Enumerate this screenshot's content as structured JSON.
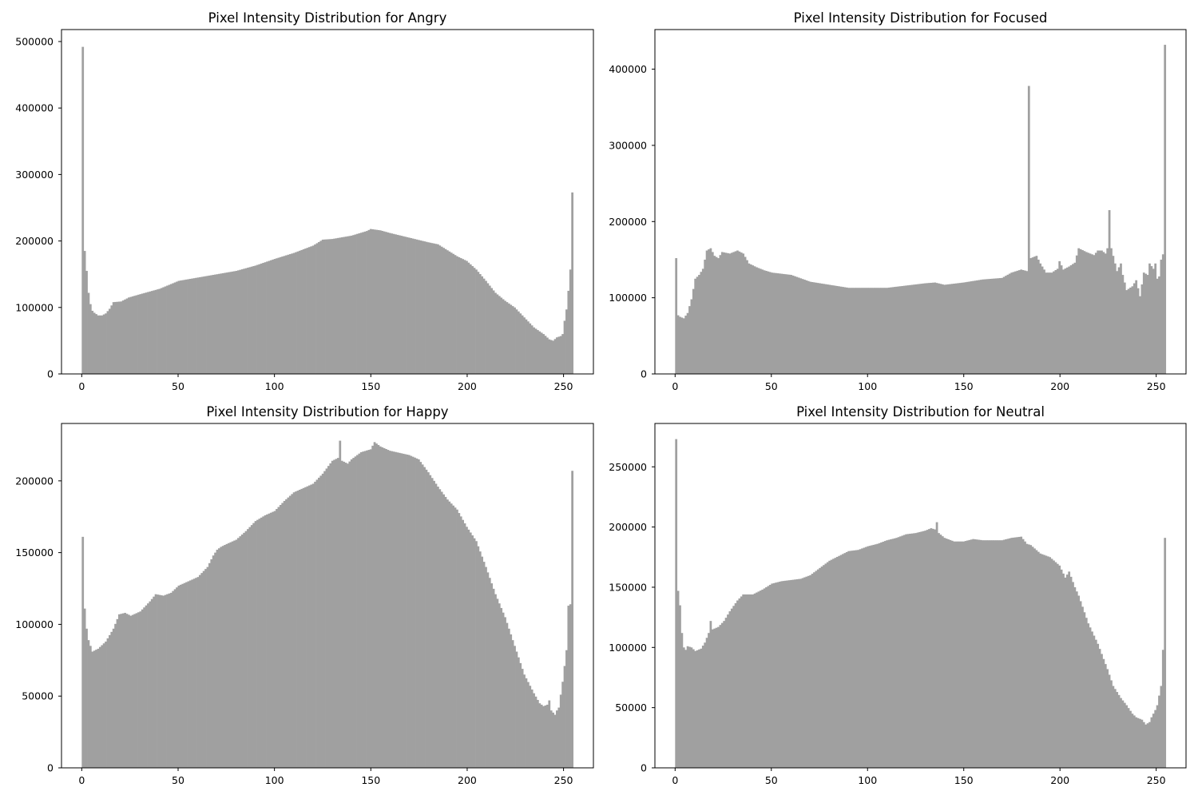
{
  "colors": {
    "bar": "#a0a0a0",
    "background": "#ffffff",
    "axis": "#000000"
  },
  "chart_data": [
    {
      "type": "bar",
      "title": "Pixel Intensity Distribution for Angry",
      "xlabel": "",
      "ylabel": "",
      "xlim": [
        -10.5,
        265.5
      ],
      "ylim": [
        0,
        518000
      ],
      "xticks": [
        0,
        50,
        100,
        150,
        200,
        250
      ],
      "yticks": [
        0,
        100000,
        200000,
        300000,
        400000,
        500000
      ],
      "grid": false,
      "bins": {
        "start": 0,
        "end": 255,
        "count": 256
      },
      "control_points": [
        [
          0,
          492000
        ],
        [
          1,
          185000
        ],
        [
          2,
          155000
        ],
        [
          3,
          122000
        ],
        [
          4,
          105000
        ],
        [
          5,
          95000
        ],
        [
          6,
          92000
        ],
        [
          8,
          88000
        ],
        [
          10,
          88000
        ],
        [
          12,
          91000
        ],
        [
          14,
          98000
        ],
        [
          16,
          108000
        ],
        [
          20,
          109000
        ],
        [
          24,
          115000
        ],
        [
          30,
          120000
        ],
        [
          40,
          128000
        ],
        [
          50,
          140000
        ],
        [
          60,
          145000
        ],
        [
          70,
          150000
        ],
        [
          80,
          155000
        ],
        [
          90,
          163000
        ],
        [
          100,
          173000
        ],
        [
          110,
          182000
        ],
        [
          120,
          193000
        ],
        [
          125,
          202000
        ],
        [
          130,
          203000
        ],
        [
          140,
          208000
        ],
        [
          148,
          215000
        ],
        [
          150,
          218000
        ],
        [
          155,
          216000
        ],
        [
          160,
          212000
        ],
        [
          170,
          205000
        ],
        [
          180,
          198000
        ],
        [
          185,
          195000
        ],
        [
          190,
          186000
        ],
        [
          195,
          177000
        ],
        [
          200,
          170000
        ],
        [
          205,
          157000
        ],
        [
          210,
          140000
        ],
        [
          215,
          122000
        ],
        [
          220,
          110000
        ],
        [
          225,
          100000
        ],
        [
          230,
          85000
        ],
        [
          235,
          70000
        ],
        [
          240,
          60000
        ],
        [
          243,
          52000
        ],
        [
          245,
          50000
        ],
        [
          247,
          55000
        ],
        [
          249,
          57000
        ],
        [
          250,
          60000
        ],
        [
          251,
          80000
        ],
        [
          252,
          97000
        ],
        [
          253,
          125000
        ],
        [
          254,
          157000
        ],
        [
          255,
          273000
        ]
      ]
    },
    {
      "type": "bar",
      "title": "Pixel Intensity Distribution for Focused",
      "xlabel": "",
      "ylabel": "",
      "xlim": [
        -10.5,
        265.5
      ],
      "ylim": [
        0,
        452000
      ],
      "xticks": [
        0,
        50,
        100,
        150,
        200,
        250
      ],
      "yticks": [
        0,
        100000,
        200000,
        300000,
        400000
      ],
      "grid": false,
      "bins": {
        "start": 0,
        "end": 255,
        "count": 256
      },
      "control_points": [
        [
          0,
          152000
        ],
        [
          1,
          77000
        ],
        [
          2,
          75000
        ],
        [
          4,
          73000
        ],
        [
          6,
          80000
        ],
        [
          8,
          98000
        ],
        [
          10,
          125000
        ],
        [
          12,
          130000
        ],
        [
          14,
          138000
        ],
        [
          16,
          162000
        ],
        [
          18,
          165000
        ],
        [
          20,
          155000
        ],
        [
          22,
          152000
        ],
        [
          24,
          160000
        ],
        [
          28,
          158000
        ],
        [
          32,
          162000
        ],
        [
          35,
          158000
        ],
        [
          38,
          145000
        ],
        [
          42,
          140000
        ],
        [
          46,
          136000
        ],
        [
          50,
          133000
        ],
        [
          60,
          130000
        ],
        [
          70,
          121000
        ],
        [
          80,
          117000
        ],
        [
          90,
          113000
        ],
        [
          100,
          113000
        ],
        [
          110,
          113000
        ],
        [
          120,
          116000
        ],
        [
          130,
          119000
        ],
        [
          135,
          120000
        ],
        [
          140,
          117000
        ],
        [
          150,
          120000
        ],
        [
          160,
          124000
        ],
        [
          170,
          126000
        ],
        [
          175,
          133000
        ],
        [
          180,
          137000
        ],
        [
          183,
          135000
        ],
        [
          184,
          378000
        ],
        [
          185,
          152000
        ],
        [
          188,
          155000
        ],
        [
          190,
          145000
        ],
        [
          193,
          133000
        ],
        [
          196,
          133000
        ],
        [
          199,
          138000
        ],
        [
          200,
          148000
        ],
        [
          202,
          137000
        ],
        [
          205,
          141000
        ],
        [
          208,
          146000
        ],
        [
          210,
          165000
        ],
        [
          214,
          160000
        ],
        [
          218,
          156000
        ],
        [
          220,
          162000
        ],
        [
          222,
          162000
        ],
        [
          224,
          158000
        ],
        [
          225,
          165000
        ],
        [
          226,
          215000
        ],
        [
          227,
          165000
        ],
        [
          228,
          155000
        ],
        [
          230,
          135000
        ],
        [
          232,
          145000
        ],
        [
          233,
          130000
        ],
        [
          235,
          110000
        ],
        [
          238,
          115000
        ],
        [
          240,
          123000
        ],
        [
          242,
          102000
        ],
        [
          244,
          133000
        ],
        [
          246,
          130000
        ],
        [
          247,
          145000
        ],
        [
          249,
          138000
        ],
        [
          250,
          145000
        ],
        [
          251,
          125000
        ],
        [
          252,
          128000
        ],
        [
          253,
          150000
        ],
        [
          254,
          157000
        ],
        [
          255,
          432000
        ]
      ]
    },
    {
      "type": "bar",
      "title": "Pixel Intensity Distribution for Happy",
      "xlabel": "",
      "ylabel": "",
      "xlim": [
        -10.5,
        265.5
      ],
      "ylim": [
        0,
        240000
      ],
      "xticks": [
        0,
        50,
        100,
        150,
        200,
        250
      ],
      "yticks": [
        0,
        50000,
        100000,
        150000,
        200000
      ],
      "grid": false,
      "bins": {
        "start": 0,
        "end": 255,
        "count": 256
      },
      "control_points": [
        [
          0,
          161000
        ],
        [
          1,
          111000
        ],
        [
          2,
          97000
        ],
        [
          3,
          89000
        ],
        [
          4,
          85000
        ],
        [
          5,
          81000
        ],
        [
          8,
          83000
        ],
        [
          12,
          88000
        ],
        [
          16,
          97000
        ],
        [
          19,
          107000
        ],
        [
          22,
          108000
        ],
        [
          25,
          106000
        ],
        [
          30,
          109000
        ],
        [
          35,
          116000
        ],
        [
          38,
          121000
        ],
        [
          42,
          120000
        ],
        [
          46,
          122000
        ],
        [
          50,
          127000
        ],
        [
          55,
          130000
        ],
        [
          60,
          133000
        ],
        [
          65,
          140000
        ],
        [
          68,
          148000
        ],
        [
          70,
          152000
        ],
        [
          72,
          154000
        ],
        [
          75,
          156000
        ],
        [
          80,
          159000
        ],
        [
          85,
          165000
        ],
        [
          90,
          172000
        ],
        [
          95,
          176000
        ],
        [
          100,
          179000
        ],
        [
          105,
          186000
        ],
        [
          110,
          192000
        ],
        [
          115,
          195000
        ],
        [
          120,
          198000
        ],
        [
          125,
          205000
        ],
        [
          130,
          214000
        ],
        [
          133,
          216000
        ],
        [
          134,
          228000
        ],
        [
          135,
          214000
        ],
        [
          138,
          212000
        ],
        [
          140,
          215000
        ],
        [
          145,
          220000
        ],
        [
          150,
          222000
        ],
        [
          152,
          227000
        ],
        [
          155,
          224000
        ],
        [
          160,
          221000
        ],
        [
          170,
          218000
        ],
        [
          175,
          215000
        ],
        [
          180,
          206000
        ],
        [
          185,
          196000
        ],
        [
          190,
          187000
        ],
        [
          195,
          180000
        ],
        [
          200,
          168000
        ],
        [
          205,
          158000
        ],
        [
          210,
          140000
        ],
        [
          215,
          121000
        ],
        [
          220,
          105000
        ],
        [
          225,
          85000
        ],
        [
          230,
          65000
        ],
        [
          235,
          52000
        ],
        [
          238,
          45000
        ],
        [
          240,
          43000
        ],
        [
          242,
          44000
        ],
        [
          243,
          47000
        ],
        [
          244,
          40000
        ],
        [
          246,
          37000
        ],
        [
          247,
          40000
        ],
        [
          248,
          42000
        ],
        [
          250,
          60000
        ],
        [
          252,
          82000
        ],
        [
          253,
          113000
        ],
        [
          254,
          114000
        ],
        [
          255,
          207000
        ]
      ]
    },
    {
      "type": "bar",
      "title": "Pixel Intensity Distribution for Neutral",
      "xlabel": "",
      "ylabel": "",
      "xlim": [
        -10.5,
        265.5
      ],
      "ylim": [
        0,
        286000
      ],
      "xticks": [
        0,
        50,
        100,
        150,
        200,
        250
      ],
      "yticks": [
        0,
        50000,
        100000,
        150000,
        200000,
        250000
      ],
      "grid": false,
      "bins": {
        "start": 0,
        "end": 255,
        "count": 256
      },
      "control_points": [
        [
          0,
          273000
        ],
        [
          1,
          147000
        ],
        [
          2,
          135000
        ],
        [
          3,
          112000
        ],
        [
          4,
          100000
        ],
        [
          5,
          98000
        ],
        [
          6,
          101000
        ],
        [
          8,
          100000
        ],
        [
          10,
          97000
        ],
        [
          13,
          99000
        ],
        [
          15,
          104000
        ],
        [
          17,
          112000
        ],
        [
          18,
          122000
        ],
        [
          19,
          115000
        ],
        [
          22,
          117000
        ],
        [
          25,
          122000
        ],
        [
          28,
          130000
        ],
        [
          32,
          139000
        ],
        [
          35,
          144000
        ],
        [
          40,
          144000
        ],
        [
          45,
          148000
        ],
        [
          50,
          153000
        ],
        [
          55,
          155000
        ],
        [
          60,
          156000
        ],
        [
          65,
          157000
        ],
        [
          70,
          160000
        ],
        [
          75,
          166000
        ],
        [
          80,
          172000
        ],
        [
          85,
          176000
        ],
        [
          90,
          180000
        ],
        [
          95,
          181000
        ],
        [
          100,
          184000
        ],
        [
          105,
          186000
        ],
        [
          110,
          189000
        ],
        [
          115,
          191000
        ],
        [
          120,
          194000
        ],
        [
          125,
          195000
        ],
        [
          130,
          197000
        ],
        [
          133,
          199000
        ],
        [
          135,
          198000
        ],
        [
          136,
          204000
        ],
        [
          137,
          195000
        ],
        [
          140,
          191000
        ],
        [
          145,
          188000
        ],
        [
          150,
          188000
        ],
        [
          155,
          190000
        ],
        [
          160,
          189000
        ],
        [
          170,
          189000
        ],
        [
          175,
          191000
        ],
        [
          180,
          192000
        ],
        [
          183,
          186000
        ],
        [
          185,
          185000
        ],
        [
          190,
          178000
        ],
        [
          195,
          175000
        ],
        [
          200,
          168000
        ],
        [
          203,
          158000
        ],
        [
          205,
          163000
        ],
        [
          208,
          150000
        ],
        [
          210,
          143000
        ],
        [
          215,
          120000
        ],
        [
          220,
          103000
        ],
        [
          225,
          82000
        ],
        [
          228,
          68000
        ],
        [
          232,
          58000
        ],
        [
          235,
          52000
        ],
        [
          238,
          45000
        ],
        [
          240,
          42000
        ],
        [
          243,
          40000
        ],
        [
          245,
          36000
        ],
        [
          247,
          38000
        ],
        [
          248,
          42000
        ],
        [
          250,
          48000
        ],
        [
          251,
          52000
        ],
        [
          252,
          60000
        ],
        [
          253,
          68000
        ],
        [
          254,
          98000
        ],
        [
          255,
          191000
        ]
      ]
    }
  ]
}
